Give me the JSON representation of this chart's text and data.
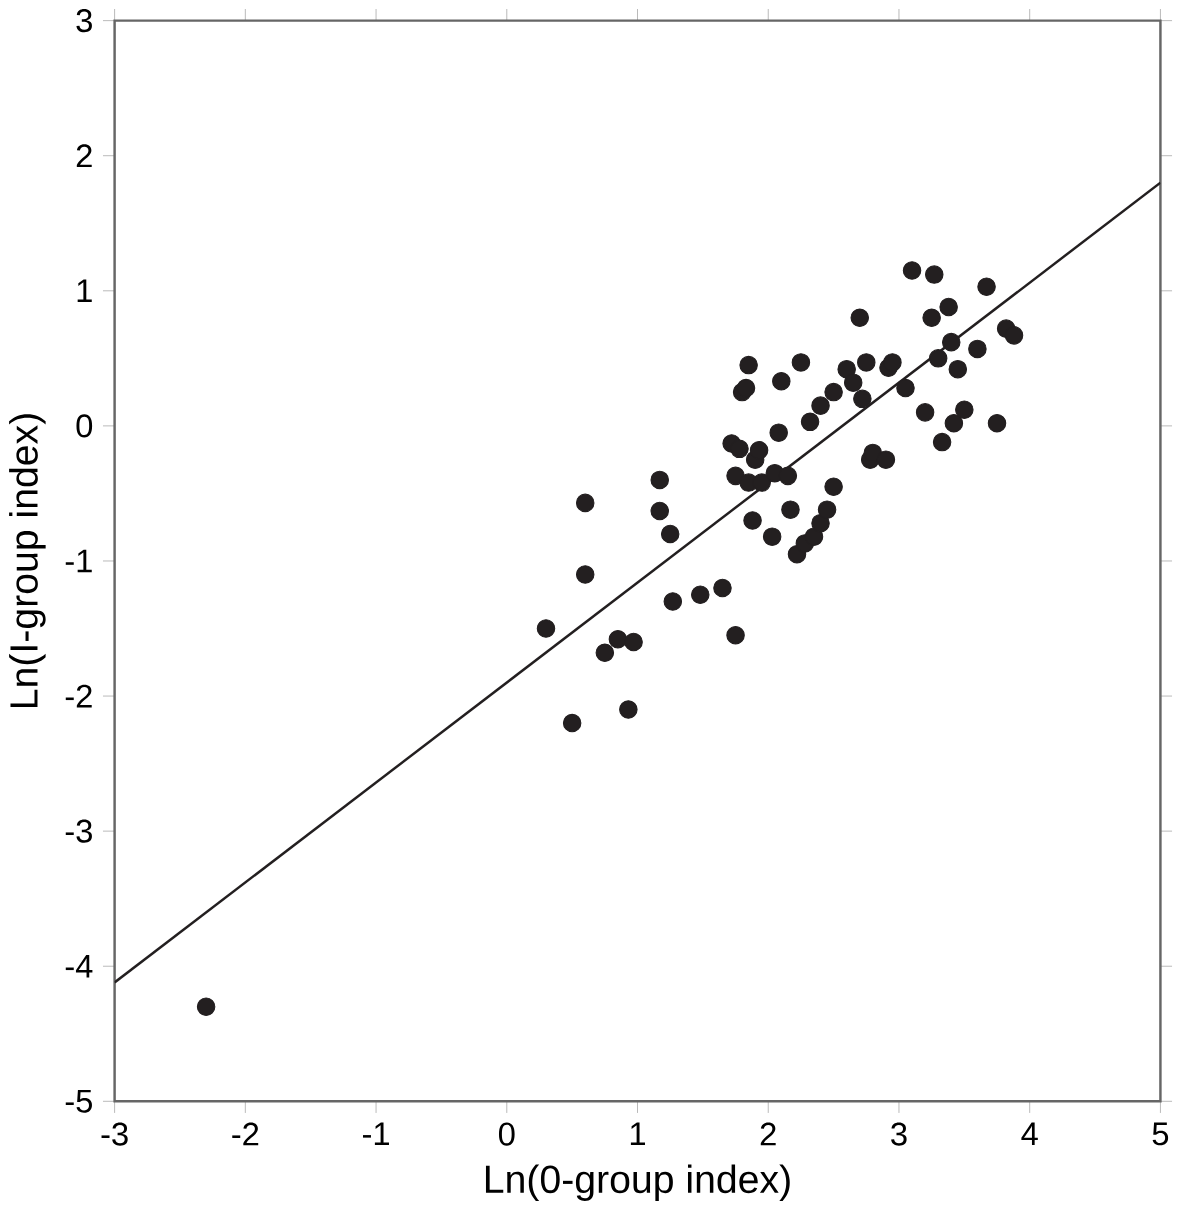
{
  "chart_data": {
    "type": "scatter",
    "xlabel": "Ln(0-group index)",
    "ylabel": "Ln(I-group index)",
    "xlim": [
      -3,
      5
    ],
    "ylim": [
      -5,
      3
    ],
    "xticks": [
      -3,
      -2,
      -1,
      0,
      1,
      2,
      3,
      4,
      5
    ],
    "yticks": [
      -5,
      -4,
      -3,
      -2,
      -1,
      0,
      1,
      2,
      3
    ],
    "series": [
      {
        "marker": "circle",
        "color": "#231f20",
        "x": [
          -2.3,
          0.3,
          0.5,
          0.6,
          0.6,
          0.75,
          0.85,
          0.93,
          0.97,
          1.17,
          1.17,
          1.25,
          1.27,
          1.48,
          1.65,
          1.72,
          1.75,
          1.75,
          1.78,
          1.8,
          1.83,
          1.85,
          1.85,
          1.88,
          1.9,
          1.93,
          1.95,
          2.03,
          2.05,
          2.08,
          2.1,
          2.15,
          2.17,
          2.22,
          2.25,
          2.28,
          2.32,
          2.35,
          2.4,
          2.4,
          2.45,
          2.5,
          2.5,
          2.6,
          2.65,
          2.7,
          2.72,
          2.75,
          2.78,
          2.8,
          2.9,
          2.92,
          2.95,
          3.05,
          3.1,
          3.2,
          3.25,
          3.27,
          3.3,
          3.33,
          3.38,
          3.4,
          3.42,
          3.45,
          3.5,
          3.6,
          3.67,
          3.75,
          3.82,
          3.88
        ],
        "values": [
          -4.3,
          -1.5,
          -2.2,
          -0.57,
          -1.1,
          -1.68,
          -1.58,
          -2.1,
          -1.6,
          -0.4,
          -0.63,
          -0.8,
          -1.3,
          -1.25,
          -1.2,
          -0.13,
          -1.55,
          -0.37,
          -0.17,
          0.25,
          0.28,
          0.45,
          -0.42,
          -0.7,
          -0.25,
          -0.18,
          -0.42,
          -0.82,
          -0.35,
          -0.05,
          0.33,
          -0.37,
          -0.62,
          -0.95,
          0.47,
          -0.87,
          0.03,
          -0.82,
          -0.72,
          0.15,
          -0.62,
          -0.45,
          0.25,
          0.42,
          0.32,
          0.8,
          0.2,
          0.47,
          -0.25,
          -0.2,
          -0.25,
          0.43,
          0.47,
          0.28,
          1.15,
          0.1,
          0.8,
          1.12,
          0.5,
          -0.12,
          0.88,
          0.62,
          0.02,
          0.42,
          0.12,
          0.57,
          1.03,
          0.02,
          0.72,
          0.67
        ]
      },
      {
        "type": "line",
        "color": "#231f20",
        "x": [
          -3,
          5
        ],
        "values": [
          -4.12,
          1.8
        ]
      }
    ]
  }
}
